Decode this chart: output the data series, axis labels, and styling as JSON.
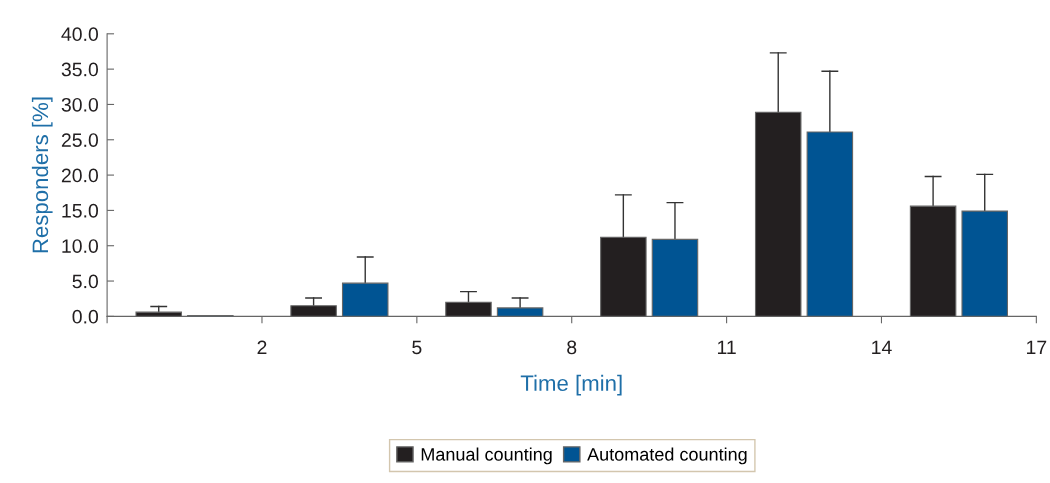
{
  "chart_data": {
    "type": "bar",
    "xlabel": "Time [min]",
    "ylabel": "Responders [%]",
    "xlim": [
      -1,
      17
    ],
    "xticks": [
      {
        "value": -1,
        "label": null
      },
      2,
      5,
      8,
      11,
      14,
      17
    ],
    "ylim": [
      0,
      40
    ],
    "yticks": [
      {
        "value": 0,
        "label": "0.0"
      },
      {
        "value": 5,
        "label": "5.0"
      },
      {
        "value": 10,
        "label": "10.0"
      },
      {
        "value": 15,
        "label": "15.0"
      },
      {
        "value": 20,
        "label": "20.0"
      },
      {
        "value": 25,
        "label": "25.0"
      },
      {
        "value": 30,
        "label": "30.0"
      },
      {
        "value": 35,
        "label": "35.0"
      },
      {
        "value": 40,
        "label": "40.0"
      }
    ],
    "legend": "bottom",
    "grid": false,
    "series": [
      {
        "name": "Manual counting",
        "color": "#231f20",
        "x": [
          0,
          3,
          6,
          9,
          12,
          15
        ],
        "values": [
          0.6,
          1.5,
          2.0,
          11.2,
          28.9,
          15.6
        ],
        "errors": [
          [
            0.6,
            1.4
          ],
          [
            1.5,
            2.6
          ],
          [
            2.0,
            3.5
          ],
          [
            11.2,
            17.2
          ],
          [
            28.9,
            37.3
          ],
          [
            15.6,
            19.8
          ]
        ]
      },
      {
        "name": "Automated counting",
        "color": "#005493",
        "x": [
          1,
          4,
          7,
          10,
          13,
          16
        ],
        "values": [
          0.1,
          4.7,
          1.2,
          10.9,
          26.1,
          14.9
        ],
        "errors": [
          null,
          [
            4.7,
            8.4
          ],
          [
            1.2,
            2.6
          ],
          [
            10.9,
            16.1
          ],
          [
            26.1,
            34.7
          ],
          [
            14.9,
            20.1
          ]
        ]
      }
    ]
  }
}
